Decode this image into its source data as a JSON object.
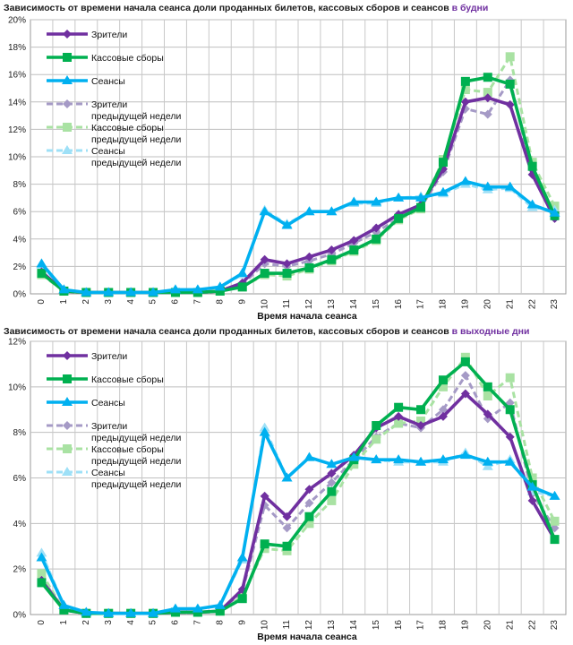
{
  "chart_data": [
    {
      "type": "line",
      "title": "Зависимость от времени начала сеанса доли проданных билетов, кассовых сборов и сеансов",
      "title_highlight": "в будни",
      "xlabel": "Время начала сеанса",
      "ylabel": "",
      "ylim": [
        0,
        20
      ],
      "yticks": [
        "0%",
        "2%",
        "4%",
        "6%",
        "8%",
        "10%",
        "12%",
        "14%",
        "16%",
        "18%",
        "20%"
      ],
      "categories": [
        "0",
        "1",
        "2",
        "3",
        "4",
        "5",
        "6",
        "7",
        "8",
        "9",
        "10",
        "11",
        "12",
        "13",
        "14",
        "15",
        "16",
        "17",
        "18",
        "19",
        "20",
        "21",
        "22",
        "23"
      ],
      "grid": true,
      "legend_position": "top-left",
      "series": [
        {
          "name": "Зрители",
          "color": "#7030a0",
          "dashed": false,
          "values": [
            1.6,
            0.2,
            0.1,
            0.1,
            0.1,
            0.1,
            0.1,
            0.1,
            0.2,
            0.8,
            2.5,
            2.2,
            2.7,
            3.2,
            3.9,
            4.8,
            5.8,
            6.5,
            9.1,
            14.0,
            14.3,
            13.8,
            8.7,
            5.5
          ]
        },
        {
          "name": "Кассовые сборы",
          "color": "#00b050",
          "dashed": false,
          "values": [
            1.5,
            0.2,
            0.1,
            0.1,
            0.1,
            0.1,
            0.1,
            0.1,
            0.2,
            0.5,
            1.5,
            1.5,
            1.9,
            2.5,
            3.2,
            4.0,
            5.5,
            6.3,
            9.6,
            15.5,
            15.8,
            15.3,
            9.3,
            5.7
          ]
        },
        {
          "name": "Сеансы",
          "color": "#00b0f0",
          "dashed": false,
          "values": [
            2.2,
            0.3,
            0.1,
            0.1,
            0.1,
            0.1,
            0.3,
            0.3,
            0.5,
            1.5,
            6.0,
            5.0,
            6.0,
            6.0,
            6.7,
            6.7,
            7.0,
            7.0,
            7.4,
            8.2,
            7.8,
            7.8,
            6.5,
            5.9
          ]
        },
        {
          "name": "Зрители предыдущей недели",
          "color": "#a59ac6",
          "dashed": true,
          "values": [
            1.5,
            0.2,
            0.1,
            0.1,
            0.1,
            0.1,
            0.1,
            0.1,
            0.2,
            0.7,
            2.2,
            2.0,
            2.4,
            2.9,
            3.7,
            4.5,
            5.5,
            6.3,
            8.9,
            13.5,
            13.1,
            15.6,
            8.7,
            5.8
          ]
        },
        {
          "name": "Кассовые сборы предыдущей недели",
          "color": "#a9e2a3",
          "dashed": true,
          "values": [
            1.4,
            0.2,
            0.1,
            0.1,
            0.1,
            0.1,
            0.1,
            0.1,
            0.2,
            0.5,
            1.4,
            1.3,
            1.8,
            2.4,
            3.1,
            3.9,
            5.4,
            6.2,
            9.8,
            14.9,
            14.7,
            17.3,
            9.6,
            6.4
          ]
        },
        {
          "name": "Сеансы предыдущей недели",
          "color": "#9ee0f7",
          "dashed": true,
          "values": [
            2.1,
            0.3,
            0.1,
            0.1,
            0.1,
            0.1,
            0.3,
            0.3,
            0.5,
            1.4,
            6.1,
            5.1,
            6.0,
            6.0,
            6.6,
            6.6,
            7.0,
            7.1,
            7.3,
            8.0,
            7.6,
            7.7,
            6.3,
            6.1
          ]
        }
      ]
    },
    {
      "type": "line",
      "title": "Зависимость от времени начала сеанса доли проданных билетов, кассовых сборов и сеансов",
      "title_highlight": "в выходные дни",
      "xlabel": "Время начала сеанса",
      "ylabel": "",
      "ylim": [
        0,
        12
      ],
      "yticks": [
        "0%",
        "2%",
        "4%",
        "6%",
        "8%",
        "10%",
        "12%"
      ],
      "categories": [
        "0",
        "1",
        "2",
        "3",
        "4",
        "5",
        "6",
        "7",
        "8",
        "9",
        "10",
        "11",
        "12",
        "13",
        "14",
        "15",
        "16",
        "17",
        "18",
        "19",
        "20",
        "21",
        "22",
        "23"
      ],
      "grid": true,
      "legend_position": "top-left",
      "series": [
        {
          "name": "Зрители",
          "color": "#7030a0",
          "dashed": false,
          "values": [
            1.5,
            0.2,
            0.05,
            0.05,
            0.05,
            0.05,
            0.1,
            0.1,
            0.15,
            1.1,
            5.2,
            4.3,
            5.5,
            6.2,
            7.0,
            8.2,
            8.7,
            8.3,
            8.7,
            9.7,
            8.8,
            7.8,
            5.0,
            3.3
          ]
        },
        {
          "name": "Кассовые сборы",
          "color": "#00b050",
          "dashed": false,
          "values": [
            1.4,
            0.2,
            0.05,
            0.05,
            0.05,
            0.05,
            0.1,
            0.1,
            0.15,
            0.7,
            3.1,
            3.0,
            4.3,
            5.4,
            6.8,
            8.3,
            9.1,
            9.0,
            10.3,
            11.1,
            10.0,
            9.0,
            5.7,
            3.3
          ]
        },
        {
          "name": "Сеансы",
          "color": "#00b0f0",
          "dashed": false,
          "values": [
            2.5,
            0.4,
            0.1,
            0.05,
            0.05,
            0.05,
            0.25,
            0.25,
            0.4,
            2.5,
            8.0,
            6.0,
            6.9,
            6.6,
            6.9,
            6.8,
            6.8,
            6.7,
            6.8,
            7.0,
            6.7,
            6.7,
            5.6,
            5.2
          ]
        },
        {
          "name": "Зрители предыдущей недели",
          "color": "#a59ac6",
          "dashed": true,
          "values": [
            1.6,
            0.2,
            0.05,
            0.05,
            0.05,
            0.05,
            0.1,
            0.1,
            0.15,
            1.0,
            4.8,
            3.8,
            4.9,
            5.8,
            6.8,
            7.8,
            8.4,
            8.2,
            9.0,
            10.5,
            8.6,
            9.3,
            5.3,
            3.8
          ]
        },
        {
          "name": "Кассовые сборы предыдущей недели",
          "color": "#a9e2a3",
          "dashed": true,
          "values": [
            1.8,
            0.2,
            0.05,
            0.05,
            0.05,
            0.05,
            0.1,
            0.1,
            0.15,
            0.8,
            2.9,
            2.8,
            4.0,
            5.0,
            6.6,
            7.7,
            8.4,
            8.5,
            10.0,
            11.3,
            9.6,
            10.4,
            6.0,
            4.1
          ]
        },
        {
          "name": "Сеансы предыдущей недели",
          "color": "#9ee0f7",
          "dashed": true,
          "values": [
            2.7,
            0.4,
            0.1,
            0.05,
            0.05,
            0.05,
            0.25,
            0.25,
            0.4,
            2.4,
            8.2,
            6.0,
            6.9,
            6.6,
            6.9,
            6.8,
            6.7,
            6.7,
            6.7,
            7.1,
            6.5,
            6.8,
            5.4,
            5.2
          ]
        }
      ]
    }
  ]
}
